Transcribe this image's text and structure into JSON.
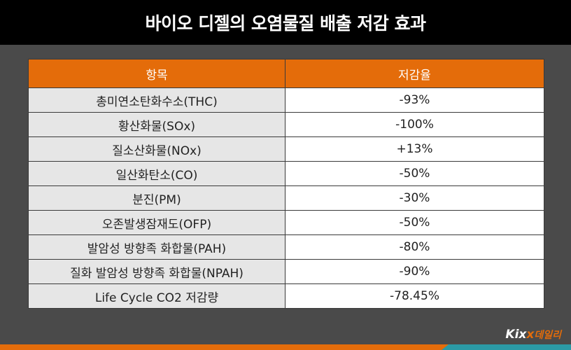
{
  "title": "바이오 디젤의 오염물질 배출 저감 효과",
  "table": {
    "headers": [
      "항목",
      "저감율"
    ],
    "rows": [
      [
        "총미연소탄화수소(THC)",
        "-93%"
      ],
      [
        "황산화물(SOx)",
        "-100%"
      ],
      [
        "질소산화물(NOx)",
        "+13%"
      ],
      [
        "일산화탄소(CO)",
        "-50%"
      ],
      [
        "분진(PM)",
        "-30%"
      ],
      [
        "오존발생잠재도(OFP)",
        "-50%"
      ],
      [
        "발암성 방향족 화합물(PAH)",
        "-80%"
      ],
      [
        "질화 발암성 방향족 화합물(NPAH)",
        "-90%"
      ],
      [
        "Life Cycle CO2 저감량",
        "-78.45%"
      ]
    ]
  },
  "logo": {
    "part1": "Kix",
    "part2": "x",
    "part3": "데일리"
  },
  "colors": {
    "accent": "#e46c0a",
    "teal": "#2b9aa6",
    "background": "#4a4a4a"
  }
}
